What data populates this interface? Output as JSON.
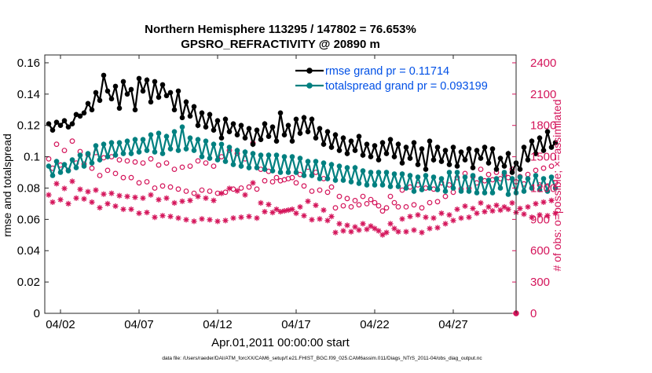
{
  "chart_data": {
    "type": "line",
    "title": "Northern Hemisphere 113295 / 147802 = 76.653%",
    "subtitle": "GPSRO_REFRACTIVITY @ 20890 m",
    "xlabel": "Apr.01,2011 00:00:00 start",
    "ylabel": "rmse and totalspread",
    "y2label": "# of obs: o=possible; ×=assimilated",
    "footnote": "data file: /Users/raeder/DAI/ATM_forcXX/CAM6_setup/f.e21.FHIST_BGC.f09_025.CAM6assim.011/Diags_NTrS_2011-04/obs_diag_output.nc",
    "x_tick_labels": [
      "04/02",
      "04/07",
      "04/12",
      "04/17",
      "04/22",
      "04/27"
    ],
    "x_tick_days": [
      2,
      7,
      12,
      17,
      22,
      27
    ],
    "xlim": [
      1.0,
      31.0
    ],
    "ylim": [
      0,
      0.165
    ],
    "y_ticks": [
      "0",
      "0.02",
      "0.04",
      "0.06",
      "0.08",
      "0.1",
      "0.12",
      "0.14",
      "0.16"
    ],
    "y2lim": [
      0,
      2475
    ],
    "y2_ticks": [
      "0",
      "300",
      "600",
      "900",
      "1200",
      "1500",
      "1800",
      "2100",
      "2400"
    ],
    "legend_position": "top-right",
    "grid": false,
    "colors": {
      "rmse": "#000000",
      "spread": "#008080",
      "obs": "#d4145a",
      "legend_text": "#0050e6"
    },
    "x_start_day": 1.25,
    "x_step_days": 0.25,
    "series": [
      {
        "name": "rmse grand pr = 0.11714",
        "values": [
          0.121,
          0.117,
          0.122,
          0.12,
          0.123,
          0.119,
          0.121,
          0.127,
          0.126,
          0.128,
          0.134,
          0.13,
          0.141,
          0.136,
          0.152,
          0.142,
          0.137,
          0.145,
          0.131,
          0.148,
          0.14,
          0.143,
          0.13,
          0.15,
          0.142,
          0.149,
          0.135,
          0.148,
          0.138,
          0.146,
          0.139,
          0.141,
          0.13,
          0.142,
          0.125,
          0.135,
          0.126,
          0.132,
          0.12,
          0.128,
          0.119,
          0.127,
          0.117,
          0.123,
          0.112,
          0.124,
          0.116,
          0.121,
          0.114,
          0.12,
          0.112,
          0.118,
          0.108,
          0.117,
          0.111,
          0.121,
          0.113,
          0.119,
          0.11,
          0.128,
          0.114,
          0.12,
          0.11,
          0.124,
          0.115,
          0.125,
          0.116,
          0.124,
          0.112,
          0.118,
          0.108,
          0.116,
          0.106,
          0.114,
          0.104,
          0.112,
          0.102,
          0.11,
          0.104,
          0.113,
          0.101,
          0.108,
          0.1,
          0.107,
          0.098,
          0.109,
          0.102,
          0.111,
          0.1,
          0.108,
          0.096,
          0.106,
          0.099,
          0.109,
          0.095,
          0.105,
          0.092,
          0.11,
          0.098,
          0.106,
          0.097,
          0.104,
          0.095,
          0.106,
          0.094,
          0.103,
          0.098,
          0.105,
          0.093,
          0.104,
          0.099,
          0.106,
          0.096,
          0.105,
          0.092,
          0.099,
          0.094,
          0.102,
          0.09,
          0.096,
          0.092,
          0.106,
          0.098,
          0.11,
          0.102,
          0.112,
          0.104,
          0.116,
          0.106,
          0.109
        ]
      },
      {
        "name": "totalspread grand pr = 0.093199",
        "values": [
          0.094,
          0.088,
          0.097,
          0.09,
          0.095,
          0.091,
          0.098,
          0.093,
          0.101,
          0.094,
          0.102,
          0.096,
          0.107,
          0.098,
          0.108,
          0.1,
          0.109,
          0.101,
          0.109,
          0.102,
          0.11,
          0.102,
          0.111,
          0.103,
          0.111,
          0.104,
          0.114,
          0.103,
          0.115,
          0.102,
          0.113,
          0.105,
          0.116,
          0.104,
          0.119,
          0.105,
          0.112,
          0.104,
          0.111,
          0.1,
          0.11,
          0.099,
          0.108,
          0.098,
          0.108,
          0.097,
          0.106,
          0.095,
          0.104,
          0.094,
          0.103,
          0.093,
          0.102,
          0.093,
          0.101,
          0.092,
          0.101,
          0.091,
          0.101,
          0.09,
          0.1,
          0.09,
          0.1,
          0.09,
          0.099,
          0.088,
          0.097,
          0.088,
          0.097,
          0.086,
          0.096,
          0.086,
          0.095,
          0.085,
          0.094,
          0.085,
          0.093,
          0.084,
          0.093,
          0.083,
          0.091,
          0.082,
          0.09,
          0.082,
          0.09,
          0.082,
          0.09,
          0.081,
          0.089,
          0.081,
          0.089,
          0.08,
          0.088,
          0.078,
          0.087,
          0.079,
          0.088,
          0.08,
          0.087,
          0.079,
          0.086,
          0.078,
          0.09,
          0.08,
          0.09,
          0.078,
          0.087,
          0.078,
          0.088,
          0.077,
          0.086,
          0.077,
          0.085,
          0.077,
          0.086,
          0.08,
          0.09,
          0.076,
          0.086,
          0.077,
          0.087,
          0.078,
          0.086,
          0.08,
          0.088,
          0.079,
          0.086,
          0.078,
          0.087,
          0.08
        ]
      }
    ],
    "obs_possible": [
      1480,
      1390,
      1620,
      1420,
      1560,
      1370,
      1650,
      1440,
      1550,
      1430,
      1520,
      1390,
      1540,
      1320,
      1490,
      1370,
      1500,
      1340,
      1470,
      1300,
      1460,
      1300,
      1450,
      1250,
      1440,
      1260,
      1480,
      1200,
      1420,
      1220,
      1440,
      1210,
      1380,
      1190,
      1400,
      1170,
      1410,
      1150,
      1460,
      1180,
      1440,
      1170,
      1410,
      1150,
      1500,
      1160,
      1560,
      1190,
      1530,
      1200,
      1480,
      1210,
      1630,
      1190,
      1380,
      1270,
      1360,
      1260,
      1300,
      1270,
      1280,
      1290,
      1300,
      1250,
      1330,
      1220,
      1400,
      1170,
      1350,
      1180,
      1290,
      1160,
      1210,
      1010,
      1120,
      1030,
      1100,
      1020,
      1080,
      1040,
      1120,
      1050,
      1090,
      1060,
      1030,
      980,
      1010,
      1120,
      1060,
      1020,
      1180,
      1020,
      1210,
      1040,
      1230,
      1010,
      1200,
      1060,
      1190,
      1070,
      1250,
      1120,
      1230,
      1160,
      1300,
      1190,
      1340,
      1200,
      1310,
      1250,
      1380,
      1270,
      1330,
      1280,
      1350,
      1290,
      1330,
      1300,
      1380,
      1260,
      1310,
      1240,
      1330,
      1200,
      1370,
      1230,
      1390,
      1220,
      1410,
      1250
    ]
  }
}
